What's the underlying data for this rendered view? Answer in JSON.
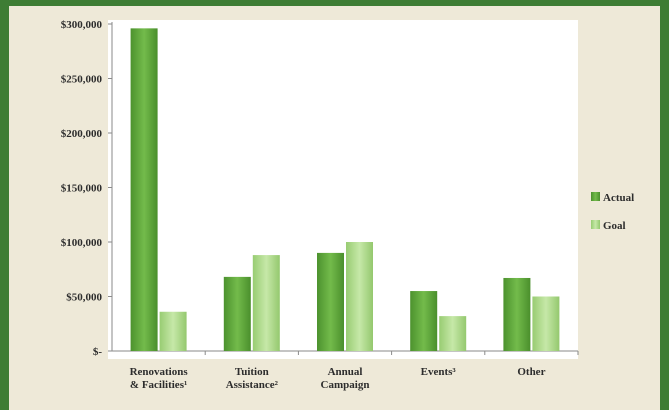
{
  "chart_data": {
    "type": "bar",
    "categories": [
      [
        "Renovations",
        "& Facilities¹"
      ],
      [
        "Tuition",
        "Assistance²"
      ],
      [
        "Annual",
        "Campaign"
      ],
      [
        "Events³"
      ],
      [
        "Other"
      ]
    ],
    "series": [
      {
        "name": "Actual",
        "values": [
          296000,
          68000,
          90000,
          55000,
          67000
        ],
        "color": "#5aa23a"
      },
      {
        "name": "Goal",
        "values": [
          36000,
          88000,
          100000,
          32000,
          50000
        ],
        "color": "#a8d884"
      }
    ],
    "ylim": [
      0,
      300000
    ],
    "yticks": [
      0,
      50000,
      100000,
      150000,
      200000,
      250000,
      300000
    ],
    "ytick_labels": [
      "$-",
      "$50,000",
      "$100,000",
      "$150,000",
      "$200,000",
      "$250,000",
      "$300,000"
    ],
    "legend_position": "right",
    "grid": false,
    "title": "",
    "xlabel": "",
    "ylabel": ""
  }
}
